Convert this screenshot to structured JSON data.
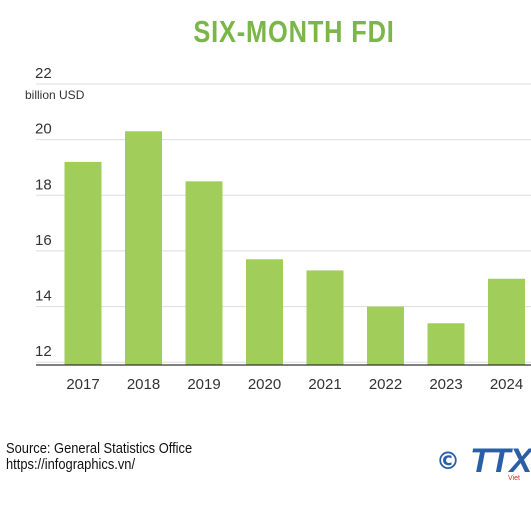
{
  "chart_data": {
    "type": "bar",
    "title": "SIX-MONTH FDI",
    "ylabel": "billion USD",
    "xlabel": "",
    "categories": [
      "2017",
      "2018",
      "2019",
      "2020",
      "2021",
      "2022",
      "2023",
      "2024"
    ],
    "values": [
      19.2,
      20.3,
      18.5,
      15.7,
      15.3,
      14.0,
      13.4,
      15.0
    ],
    "ylim": [
      11.9,
      22
    ],
    "yticks": [
      12,
      14,
      16,
      18,
      20,
      22
    ],
    "grid": true,
    "bar_color": "#a1cd5a",
    "title_color": "#7ab648"
  },
  "footer": {
    "source": "Source: General Statistics Office",
    "url": "https://infographics.vn/"
  },
  "logo": {
    "symbol": "©",
    "text": "TTX",
    "sub": "Viet"
  }
}
